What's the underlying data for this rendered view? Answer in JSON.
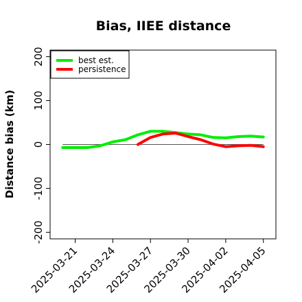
{
  "chart_data": {
    "type": "line",
    "title": "Bias, IIEE distance",
    "xlabel": "",
    "ylabel": "Distance bias (km)",
    "ylim": [
      -215,
      215
    ],
    "xlim": [
      "2025-03-19",
      "2025-04-06"
    ],
    "x_ticks": [
      "2025-03-21",
      "2025-03-24",
      "2025-03-27",
      "2025-03-30",
      "2025-04-02",
      "2025-04-05"
    ],
    "y_ticks": [
      -200,
      -100,
      0,
      100,
      200
    ],
    "reference_line": 0,
    "legend": {
      "placement": "top-left"
    },
    "series": [
      {
        "name": "best est.",
        "color": "#00ee00",
        "x": [
          "2025-03-20",
          "2025-03-21",
          "2025-03-22",
          "2025-03-23",
          "2025-03-24",
          "2025-03-25",
          "2025-03-26",
          "2025-03-27",
          "2025-03-28",
          "2025-03-29",
          "2025-03-30",
          "2025-03-31",
          "2025-04-01",
          "2025-04-02",
          "2025-04-03",
          "2025-04-04",
          "2025-04-05"
        ],
        "y": [
          -7,
          -7,
          -7,
          -3,
          6,
          11,
          22,
          30,
          30,
          27,
          24,
          22,
          16,
          15,
          18,
          19,
          17
        ]
      },
      {
        "name": "persistence",
        "color": "#ff0000",
        "x": [
          "2025-03-26",
          "2025-03-27",
          "2025-03-28",
          "2025-03-29",
          "2025-03-30",
          "2025-03-31",
          "2025-04-01",
          "2025-04-02",
          "2025-04-03",
          "2025-04-04",
          "2025-04-05"
        ],
        "y": [
          0,
          16,
          24,
          26,
          18,
          11,
          1,
          -5,
          -3,
          -2,
          -5
        ]
      }
    ]
  }
}
